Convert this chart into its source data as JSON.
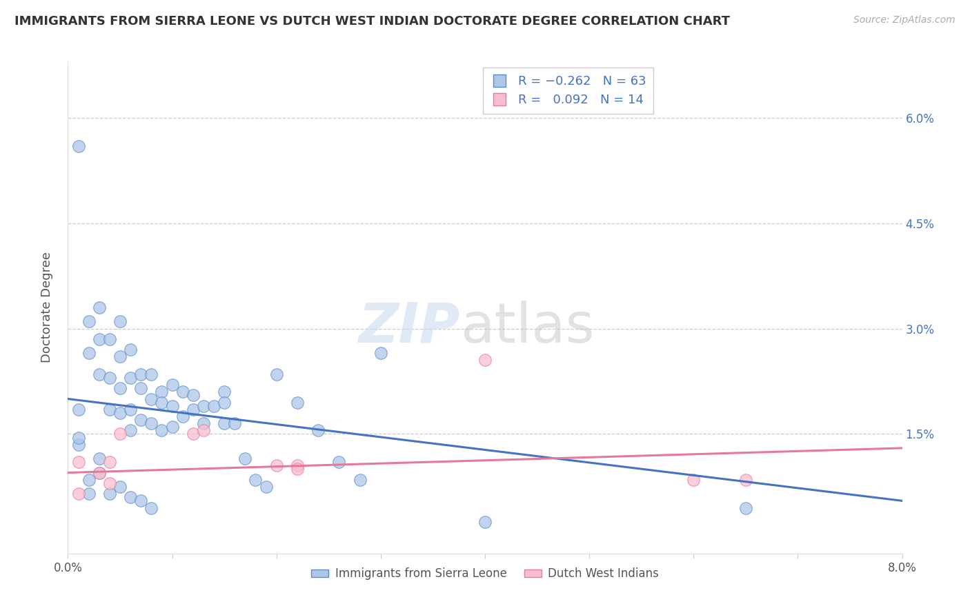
{
  "title": "IMMIGRANTS FROM SIERRA LEONE VS DUTCH WEST INDIAN DOCTORATE DEGREE CORRELATION CHART",
  "source": "Source: ZipAtlas.com",
  "ylabel": "Doctorate Degree",
  "xlim": [
    0.0,
    0.08
  ],
  "ylim": [
    -0.002,
    0.068
  ],
  "xticks": [
    0.0,
    0.01,
    0.02,
    0.03,
    0.04,
    0.05,
    0.06,
    0.07,
    0.08
  ],
  "xticklabels": [
    "0.0%",
    "",
    "",
    "",
    "",
    "",
    "",
    "",
    "8.0%"
  ],
  "yticks": [
    0.0,
    0.015,
    0.03,
    0.045,
    0.06
  ],
  "yticklabels_right": [
    "",
    "1.5%",
    "3.0%",
    "4.5%",
    "6.0%"
  ],
  "legend_label1": "Immigrants from Sierra Leone",
  "legend_label2": "Dutch West Indians",
  "blue_color": "#aec6e8",
  "blue_edge_color": "#5b8dc8",
  "blue_line_color": "#4472c4",
  "pink_color": "#f9bece",
  "pink_edge_color": "#e8789a",
  "pink_line_color": "#e8789a",
  "blue_scatter_x": [
    0.001,
    0.002,
    0.002,
    0.003,
    0.003,
    0.003,
    0.004,
    0.004,
    0.004,
    0.005,
    0.005,
    0.005,
    0.005,
    0.006,
    0.006,
    0.006,
    0.006,
    0.007,
    0.007,
    0.007,
    0.008,
    0.008,
    0.008,
    0.009,
    0.009,
    0.009,
    0.01,
    0.01,
    0.01,
    0.011,
    0.011,
    0.012,
    0.012,
    0.013,
    0.013,
    0.014,
    0.015,
    0.015,
    0.015,
    0.016,
    0.017,
    0.018,
    0.019,
    0.02,
    0.022,
    0.024,
    0.026,
    0.028,
    0.03,
    0.001,
    0.002,
    0.003,
    0.004,
    0.005,
    0.001,
    0.001,
    0.002,
    0.003,
    0.006,
    0.007,
    0.008,
    0.04,
    0.065
  ],
  "blue_scatter_y": [
    0.056,
    0.031,
    0.0265,
    0.033,
    0.0285,
    0.0235,
    0.0285,
    0.023,
    0.0185,
    0.031,
    0.026,
    0.0215,
    0.018,
    0.027,
    0.023,
    0.0185,
    0.0155,
    0.0235,
    0.0215,
    0.017,
    0.0235,
    0.02,
    0.0165,
    0.021,
    0.0195,
    0.0155,
    0.022,
    0.019,
    0.016,
    0.021,
    0.0175,
    0.0205,
    0.0185,
    0.019,
    0.0165,
    0.019,
    0.021,
    0.0195,
    0.0165,
    0.0165,
    0.0115,
    0.0085,
    0.0075,
    0.0235,
    0.0195,
    0.0155,
    0.011,
    0.0085,
    0.0265,
    0.0135,
    0.0085,
    0.0115,
    0.0065,
    0.0075,
    0.0185,
    0.0145,
    0.0065,
    0.0095,
    0.006,
    0.0055,
    0.0045,
    0.0025,
    0.0045
  ],
  "pink_scatter_x": [
    0.001,
    0.001,
    0.003,
    0.004,
    0.004,
    0.005,
    0.012,
    0.013,
    0.02,
    0.022,
    0.022,
    0.04,
    0.06,
    0.065
  ],
  "pink_scatter_y": [
    0.011,
    0.0065,
    0.0095,
    0.008,
    0.011,
    0.015,
    0.015,
    0.0155,
    0.0105,
    0.0105,
    0.01,
    0.0255,
    0.0085,
    0.0085
  ],
  "blue_trendline_x": [
    0.0,
    0.08
  ],
  "blue_trendline_y": [
    0.02,
    0.0055
  ],
  "pink_trendline_x": [
    0.0,
    0.08
  ],
  "pink_trendline_y": [
    0.0095,
    0.013
  ]
}
